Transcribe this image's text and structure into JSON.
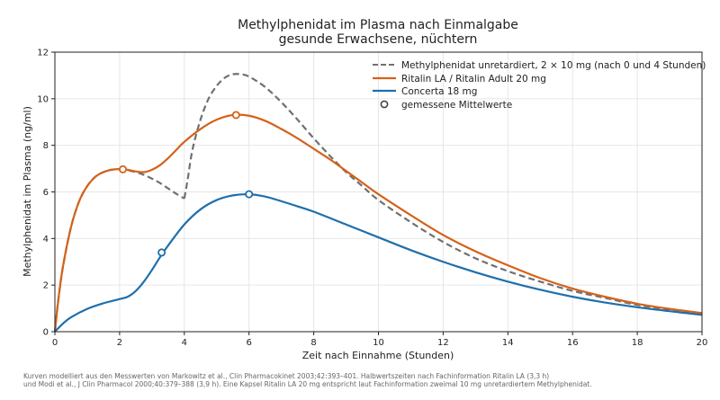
{
  "chart_data": {
    "type": "line",
    "title": [
      "Methylphenidat im Plasma nach Einmalgabe",
      "gesunde Erwachsene, nüchtern"
    ],
    "xlabel": "Zeit nach Einnahme (Stunden)",
    "ylabel": "Methylphenidat im Plasma (ng/ml)",
    "xlim": [
      0,
      20
    ],
    "ylim": [
      0,
      12
    ],
    "xticks": [
      0,
      2,
      4,
      6,
      8,
      10,
      12,
      14,
      16,
      18,
      20
    ],
    "yticks": [
      0,
      2,
      4,
      6,
      8,
      10,
      12
    ],
    "grid": true,
    "legend_position": "top-right",
    "series": [
      {
        "name": "Methylphenidat unretardiert, 2 × 10 mg (nach 0 und 4 Stunden)",
        "color": "#707070",
        "style": "dashed",
        "segments": [
          [
            [
              0,
              0
            ],
            [
              0.1,
              1.3
            ],
            [
              0.25,
              2.8
            ],
            [
              0.5,
              4.5
            ],
            [
              0.75,
              5.6
            ],
            [
              1,
              6.25
            ],
            [
              1.25,
              6.65
            ],
            [
              1.5,
              6.85
            ],
            [
              1.75,
              6.95
            ],
            [
              2,
              6.97
            ],
            [
              2.25,
              6.93
            ],
            [
              2.5,
              6.85
            ],
            [
              2.75,
              6.73
            ],
            [
              3,
              6.57
            ],
            [
              3.25,
              6.38
            ],
            [
              3.5,
              6.15
            ],
            [
              3.75,
              5.92
            ],
            [
              4,
              5.72
            ]
          ],
          [
            [
              4,
              5.72
            ],
            [
              4.1,
              6.5
            ],
            [
              4.25,
              7.8
            ],
            [
              4.5,
              9.1
            ],
            [
              4.75,
              10.0
            ],
            [
              5,
              10.55
            ],
            [
              5.25,
              10.9
            ],
            [
              5.5,
              11.05
            ],
            [
              5.75,
              11.05
            ],
            [
              6,
              10.95
            ],
            [
              6.5,
              10.5
            ],
            [
              7,
              9.85
            ],
            [
              7.5,
              9.1
            ],
            [
              8,
              8.3
            ],
            [
              8.5,
              7.55
            ],
            [
              9,
              6.85
            ],
            [
              9.5,
              6.25
            ],
            [
              10,
              5.65
            ],
            [
              11,
              4.7
            ],
            [
              12,
              3.85
            ],
            [
              13,
              3.15
            ],
            [
              14,
              2.6
            ],
            [
              15,
              2.15
            ],
            [
              16,
              1.75
            ],
            [
              17,
              1.45
            ],
            [
              18,
              1.15
            ],
            [
              19,
              0.95
            ],
            [
              20,
              0.75
            ]
          ]
        ]
      },
      {
        "name": "Ritalin LA / Ritalin Adult 20 mg",
        "color": "#d4621a",
        "style": "solid",
        "points": [
          [
            0,
            0
          ],
          [
            0.1,
            1.3
          ],
          [
            0.25,
            2.8
          ],
          [
            0.5,
            4.5
          ],
          [
            0.75,
            5.6
          ],
          [
            1,
            6.25
          ],
          [
            1.25,
            6.65
          ],
          [
            1.5,
            6.85
          ],
          [
            1.75,
            6.95
          ],
          [
            2,
            6.98
          ],
          [
            2.25,
            6.95
          ],
          [
            2.5,
            6.88
          ],
          [
            2.75,
            6.85
          ],
          [
            3,
            6.95
          ],
          [
            3.25,
            7.15
          ],
          [
            3.5,
            7.45
          ],
          [
            3.75,
            7.8
          ],
          [
            4,
            8.15
          ],
          [
            4.5,
            8.7
          ],
          [
            5,
            9.1
          ],
          [
            5.5,
            9.3
          ],
          [
            6,
            9.27
          ],
          [
            6.5,
            9.05
          ],
          [
            7,
            8.7
          ],
          [
            7.5,
            8.3
          ],
          [
            8,
            7.85
          ],
          [
            8.5,
            7.4
          ],
          [
            9,
            6.9
          ],
          [
            9.5,
            6.4
          ],
          [
            10,
            5.9
          ],
          [
            11,
            5.0
          ],
          [
            12,
            4.15
          ],
          [
            13,
            3.45
          ],
          [
            14,
            2.85
          ],
          [
            15,
            2.3
          ],
          [
            16,
            1.85
          ],
          [
            17,
            1.5
          ],
          [
            18,
            1.2
          ],
          [
            19,
            0.98
          ],
          [
            20,
            0.8
          ]
        ]
      },
      {
        "name": "Concerta 18 mg",
        "color": "#1f6fab",
        "style": "solid",
        "points": [
          [
            0,
            0
          ],
          [
            0.25,
            0.35
          ],
          [
            0.5,
            0.62
          ],
          [
            1,
            0.98
          ],
          [
            1.5,
            1.22
          ],
          [
            2,
            1.4
          ],
          [
            2.25,
            1.5
          ],
          [
            2.5,
            1.75
          ],
          [
            2.75,
            2.15
          ],
          [
            3,
            2.65
          ],
          [
            3.25,
            3.2
          ],
          [
            3.5,
            3.7
          ],
          [
            4,
            4.6
          ],
          [
            4.5,
            5.25
          ],
          [
            5,
            5.65
          ],
          [
            5.5,
            5.85
          ],
          [
            6,
            5.9
          ],
          [
            6.5,
            5.8
          ],
          [
            7,
            5.6
          ],
          [
            7.5,
            5.38
          ],
          [
            8,
            5.15
          ],
          [
            9,
            4.6
          ],
          [
            10,
            4.05
          ],
          [
            11,
            3.5
          ],
          [
            12,
            3.0
          ],
          [
            13,
            2.55
          ],
          [
            14,
            2.15
          ],
          [
            15,
            1.8
          ],
          [
            16,
            1.5
          ],
          [
            17,
            1.25
          ],
          [
            18,
            1.05
          ],
          [
            19,
            0.88
          ],
          [
            20,
            0.72
          ]
        ]
      }
    ],
    "measured_points": {
      "name": "gemessene Mittelwerte",
      "points": [
        {
          "x": 2.1,
          "y": 6.97,
          "series": 1
        },
        {
          "x": 5.6,
          "y": 9.3,
          "series": 1
        },
        {
          "x": 3.3,
          "y": 3.4,
          "series": 2
        },
        {
          "x": 6.0,
          "y": 5.9,
          "series": 2
        }
      ]
    },
    "footnote": [
      "Kurven modelliert aus den Messwerten von Markowitz et al., Clin Pharmacokinet 2003;42:393–401. Halbwertszeiten nach Fachinformation Ritalin LA (3,3 h)",
      "und Modi et al., J Clin Pharmacol 2000;40:379–388 (3,9 h). Eine Kapsel Ritalin LA 20 mg entspricht laut Fachinformation zweimal 10 mg unretardiertem Methylphenidat."
    ]
  }
}
